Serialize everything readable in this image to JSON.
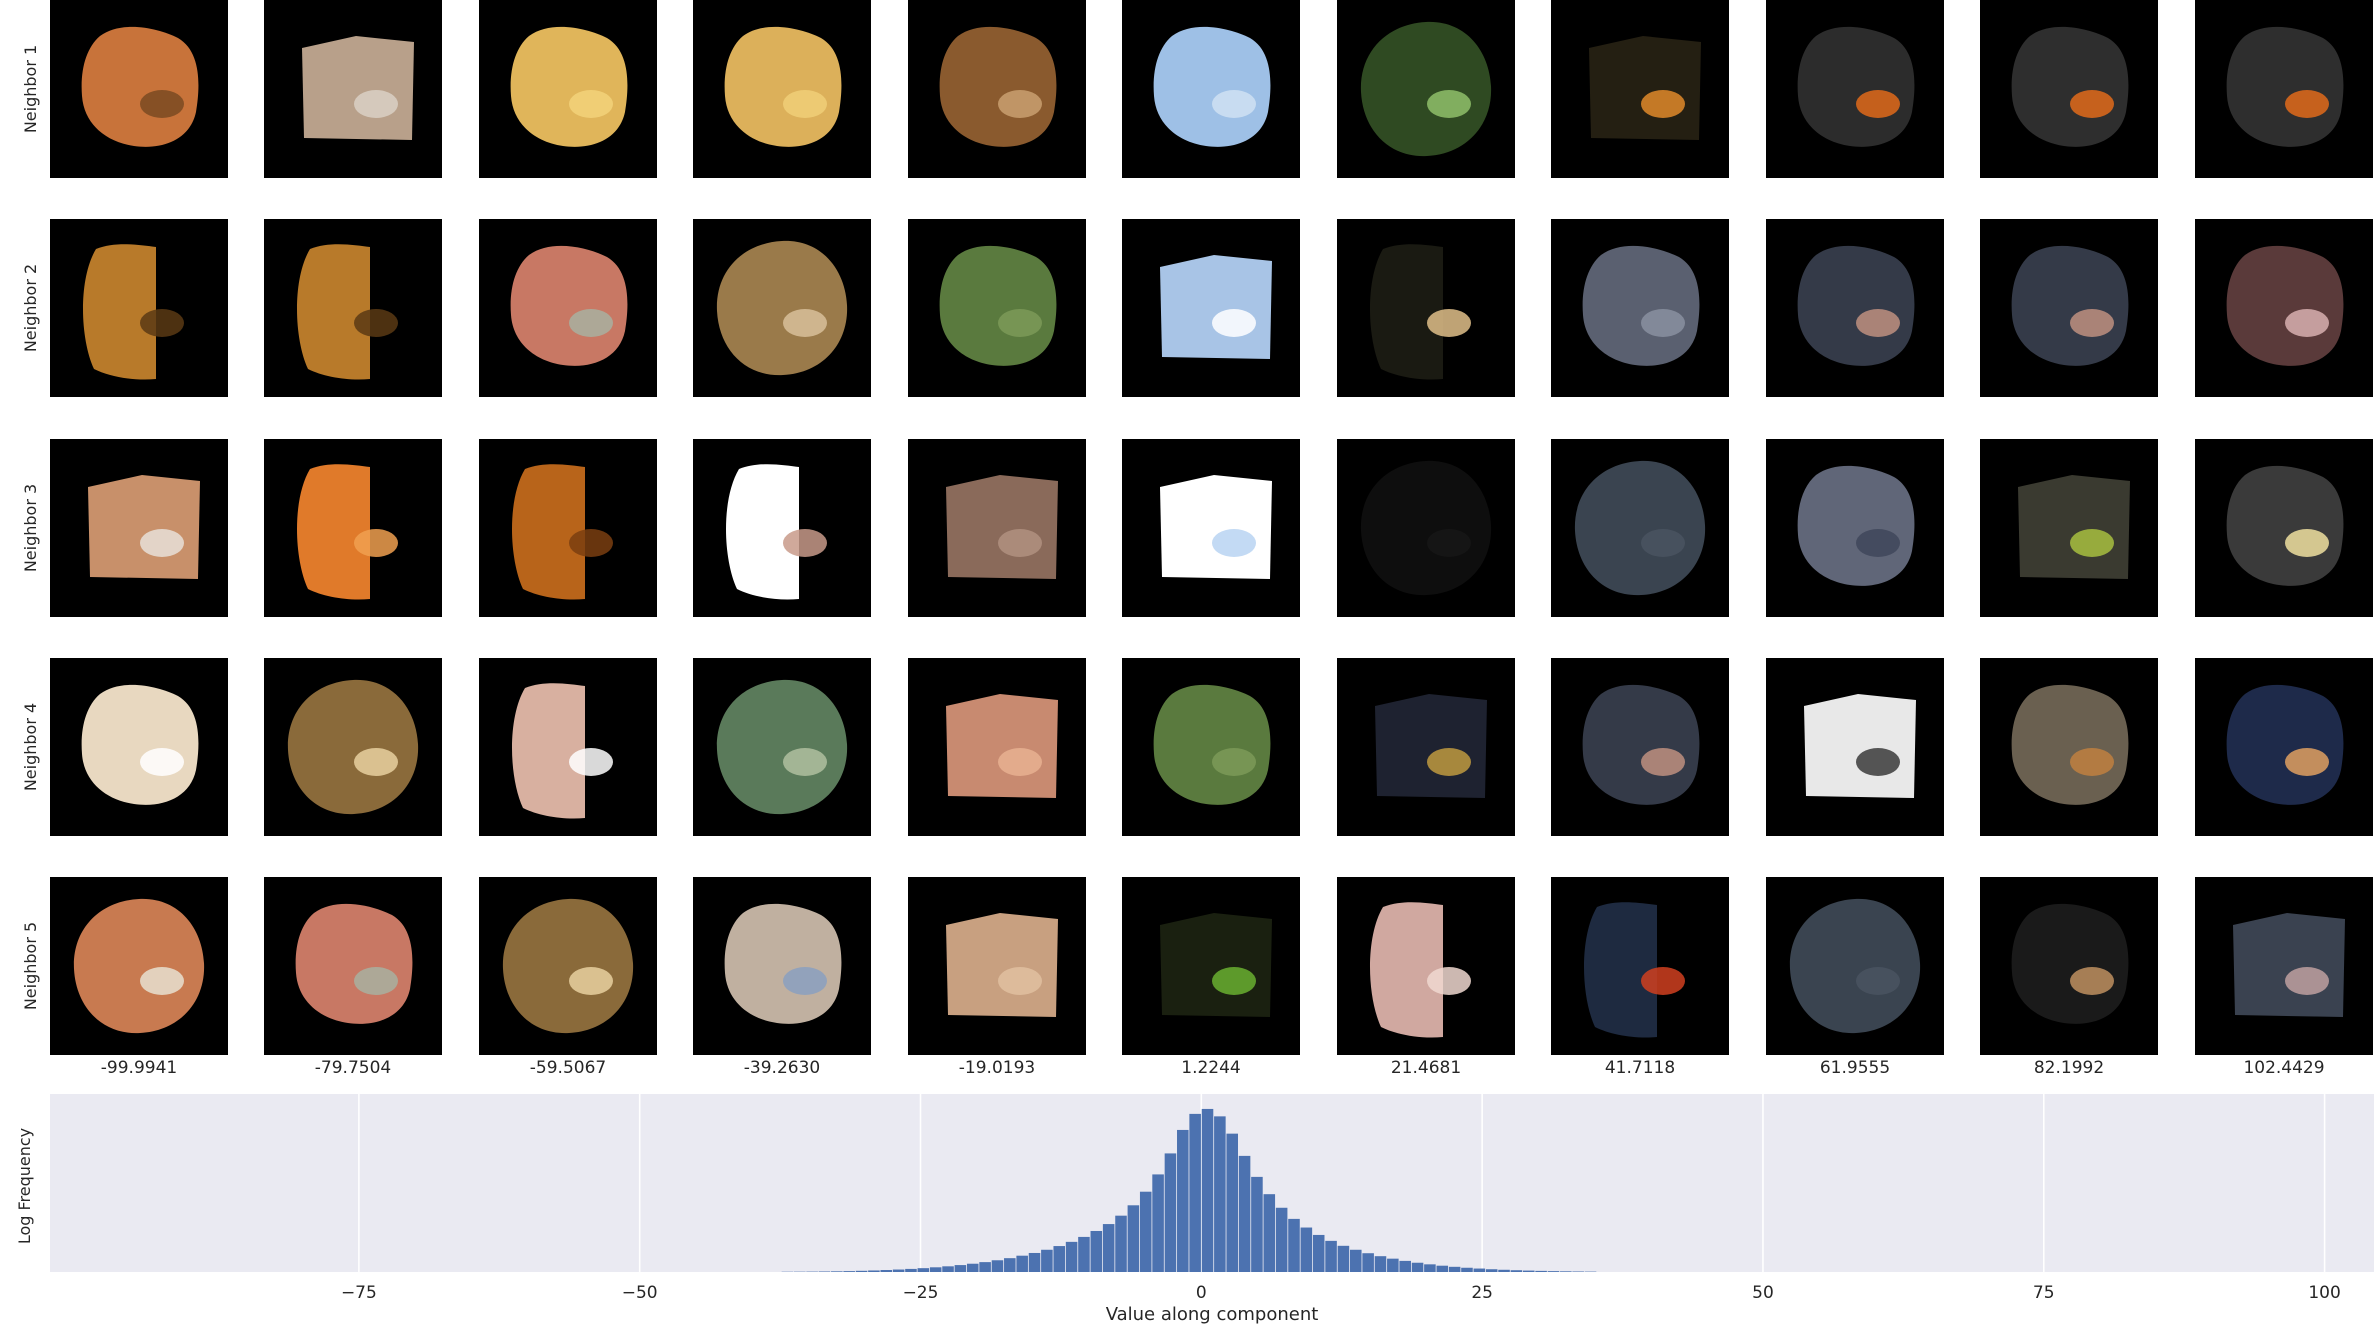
{
  "row_labels": [
    "Neighbor 1",
    "Neighbor 2",
    "Neighbor 3",
    "Neighbor 4",
    "Neighbor 5"
  ],
  "column_values": [
    "-99.9941",
    "-79.7504",
    "-59.5067",
    "-39.2630",
    "-19.0193",
    "1.2244",
    "21.4681",
    "41.7118",
    "61.9555",
    "82.1992",
    "102.4429"
  ],
  "tiles": [
    [
      {
        "color": "#c8733a",
        "accent": "#7a4a22",
        "shape": "blob"
      },
      {
        "color": "#b8a08a",
        "accent": "#d9d0c4",
        "shape": "block"
      },
      {
        "color": "#e0b55a",
        "accent": "#f2d27a",
        "shape": "blob"
      },
      {
        "color": "#dcb05a",
        "accent": "#f0cf78",
        "shape": "blob"
      },
      {
        "color": "#8a5a2e",
        "accent": "#c9a070",
        "shape": "blob"
      },
      {
        "color": "#9ec0e6",
        "accent": "#cfe0f2",
        "shape": "blob"
      },
      {
        "color": "#2f4a22",
        "accent": "#8fbf6a",
        "shape": "round"
      },
      {
        "color": "#241f12",
        "accent": "#e08a2a",
        "shape": "block"
      },
      {
        "color": "#2c2c2c",
        "accent": "#e06a1a",
        "shape": "blob"
      },
      {
        "color": "#2e2e2e",
        "accent": "#e06a1a",
        "shape": "blob"
      },
      {
        "color": "#2e2e2e",
        "accent": "#e06a1a",
        "shape": "blob"
      }
    ],
    [
      {
        "color": "#b87a2a",
        "accent": "#5a3a14",
        "shape": "half"
      },
      {
        "color": "#b87a2a",
        "accent": "#5a3a14",
        "shape": "half"
      },
      {
        "color": "#c87864",
        "accent": "#a8b0a0",
        "shape": "blob"
      },
      {
        "color": "#9a7a4a",
        "accent": "#d8c09a",
        "shape": "round"
      },
      {
        "color": "#5a7a3e",
        "accent": "#7c9a58",
        "shape": "blob"
      },
      {
        "color": "#a8c4e6",
        "accent": "#ffffff",
        "shape": "block"
      },
      {
        "color": "#1a1a12",
        "accent": "#e0c08a",
        "shape": "half"
      },
      {
        "color": "#5a6070",
        "accent": "#8a90a0",
        "shape": "blob"
      },
      {
        "color": "#343a48",
        "accent": "#c09080",
        "shape": "blob"
      },
      {
        "color": "#343a48",
        "accent": "#c09080",
        "shape": "blob"
      },
      {
        "color": "#5a3a3a",
        "accent": "#d8b0b0",
        "shape": "blob"
      }
    ],
    [
      {
        "color": "#c8906a",
        "accent": "#e8e0d8",
        "shape": "block"
      },
      {
        "color": "#e07a2a",
        "accent": "#f0a050",
        "shape": "half"
      },
      {
        "color": "#b8641a",
        "accent": "#7a3e10",
        "shape": "half"
      },
      {
        "color": "#ffffff",
        "accent": "#c89a8a",
        "shape": "half"
      },
      {
        "color": "#8a6a5a",
        "accent": "#b09080",
        "shape": "block"
      },
      {
        "color": "#ffffff",
        "accent": "#b8d4f2",
        "shape": "block"
      },
      {
        "color": "#0e0e0e",
        "accent": "#161616",
        "shape": "round"
      },
      {
        "color": "#3a4450",
        "accent": "#4a5460",
        "shape": "round"
      },
      {
        "color": "#606678",
        "accent": "#40465a",
        "shape": "blob"
      },
      {
        "color": "#3a3a30",
        "accent": "#a8c040",
        "shape": "block"
      },
      {
        "color": "#3a3a3a",
        "accent": "#f0e0a0",
        "shape": "blob"
      }
    ],
    [
      {
        "color": "#e8d8c0",
        "accent": "#ffffff",
        "shape": "blob"
      },
      {
        "color": "#8a6a3a",
        "accent": "#e8d0a0",
        "shape": "round"
      },
      {
        "color": "#d8b0a0",
        "accent": "#ffffff",
        "shape": "half"
      },
      {
        "color": "#5a7a5a",
        "accent": "#b0c0a0",
        "shape": "round"
      },
      {
        "color": "#c88a70",
        "accent": "#e8b090",
        "shape": "block"
      },
      {
        "color": "#5a7a3e",
        "accent": "#7c9a58",
        "shape": "blob"
      },
      {
        "color": "#1e2230",
        "accent": "#c09a40",
        "shape": "block"
      },
      {
        "color": "#343a48",
        "accent": "#c09080",
        "shape": "blob"
      },
      {
        "color": "#e8e8e8",
        "accent": "#3a3a3a",
        "shape": "block"
      },
      {
        "color": "#6a6050",
        "accent": "#c08040",
        "shape": "blob"
      },
      {
        "color": "#1e2a4a",
        "accent": "#e0a060",
        "shape": "blob"
      }
    ],
    [
      {
        "color": "#c87a50",
        "accent": "#e8e0d0",
        "shape": "round"
      },
      {
        "color": "#c87864",
        "accent": "#a8b0a0",
        "shape": "blob"
      },
      {
        "color": "#8a6a3a",
        "accent": "#e8d0a0",
        "shape": "round"
      },
      {
        "color": "#c0b0a0",
        "accent": "#8aa0c0",
        "shape": "blob"
      },
      {
        "color": "#c8a080",
        "accent": "#e0c0a0",
        "shape": "block"
      },
      {
        "color": "#1a2010",
        "accent": "#6ab030",
        "shape": "block"
      },
      {
        "color": "#d0a8a0",
        "accent": "#f0d8d0",
        "shape": "half"
      },
      {
        "color": "#1e2a40",
        "accent": "#d04020",
        "shape": "half"
      },
      {
        "color": "#3a4450",
        "accent": "#4a5460",
        "shape": "round"
      },
      {
        "color": "#1a1a1a",
        "accent": "#c09060",
        "shape": "blob"
      },
      {
        "color": "#3a4250",
        "accent": "#c0a0a0",
        "shape": "block"
      }
    ]
  ],
  "chart_data": {
    "type": "bar",
    "title": "",
    "xlabel": "Value along component",
    "ylabel": "Log Frequency",
    "xlim": [
      -102.5,
      104.4
    ],
    "xticks": [
      -75,
      -50,
      -25,
      0,
      25,
      50,
      75,
      100
    ],
    "xtick_labels": [
      "−75",
      "−50",
      "−25",
      "0",
      "25",
      "50",
      "75",
      "100"
    ],
    "grid": true,
    "bar_color": "#4c72b0",
    "bin_width": 1.1,
    "x": [
      -36.85,
      -35.75,
      -34.65,
      -33.55,
      -32.45,
      -31.35,
      -30.25,
      -29.15,
      -28.05,
      -26.95,
      -25.85,
      -24.75,
      -23.65,
      -22.55,
      -21.45,
      -20.35,
      -19.25,
      -18.15,
      -17.05,
      -15.95,
      -14.85,
      -13.75,
      -12.65,
      -11.55,
      -10.45,
      -9.35,
      -8.25,
      -7.15,
      -6.05,
      -4.95,
      -3.85,
      -2.75,
      -1.65,
      -0.55,
      0.55,
      1.65,
      2.75,
      3.85,
      4.95,
      6.05,
      7.15,
      8.25,
      9.35,
      10.45,
      11.55,
      12.65,
      13.75,
      14.85,
      15.95,
      17.05,
      18.15,
      19.25,
      20.35,
      21.45,
      22.55,
      23.65,
      24.75,
      25.85,
      26.95,
      28.05,
      29.15,
      30.25,
      31.35,
      32.45,
      33.55,
      34.65
    ],
    "values": [
      0.1,
      0.12,
      0.15,
      0.2,
      0.27,
      0.36,
      0.48,
      0.62,
      0.8,
      1.0,
      1.25,
      1.55,
      1.9,
      2.3,
      2.8,
      3.35,
      4.0,
      4.75,
      5.6,
      6.6,
      7.7,
      9.0,
      10.5,
      12.2,
      14.2,
      16.6,
      19.4,
      22.8,
      27.0,
      32.5,
      39.5,
      48.0,
      57.5,
      64.0,
      66.0,
      63.0,
      56.0,
      47.0,
      38.5,
      31.5,
      26.0,
      21.5,
      18.0,
      15.0,
      12.6,
      10.6,
      9.0,
      7.6,
      6.4,
      5.4,
      4.5,
      3.75,
      3.1,
      2.55,
      2.1,
      1.72,
      1.4,
      1.12,
      0.9,
      0.72,
      0.57,
      0.45,
      0.35,
      0.27,
      0.2,
      0.15
    ],
    "ymax": 68.0
  }
}
